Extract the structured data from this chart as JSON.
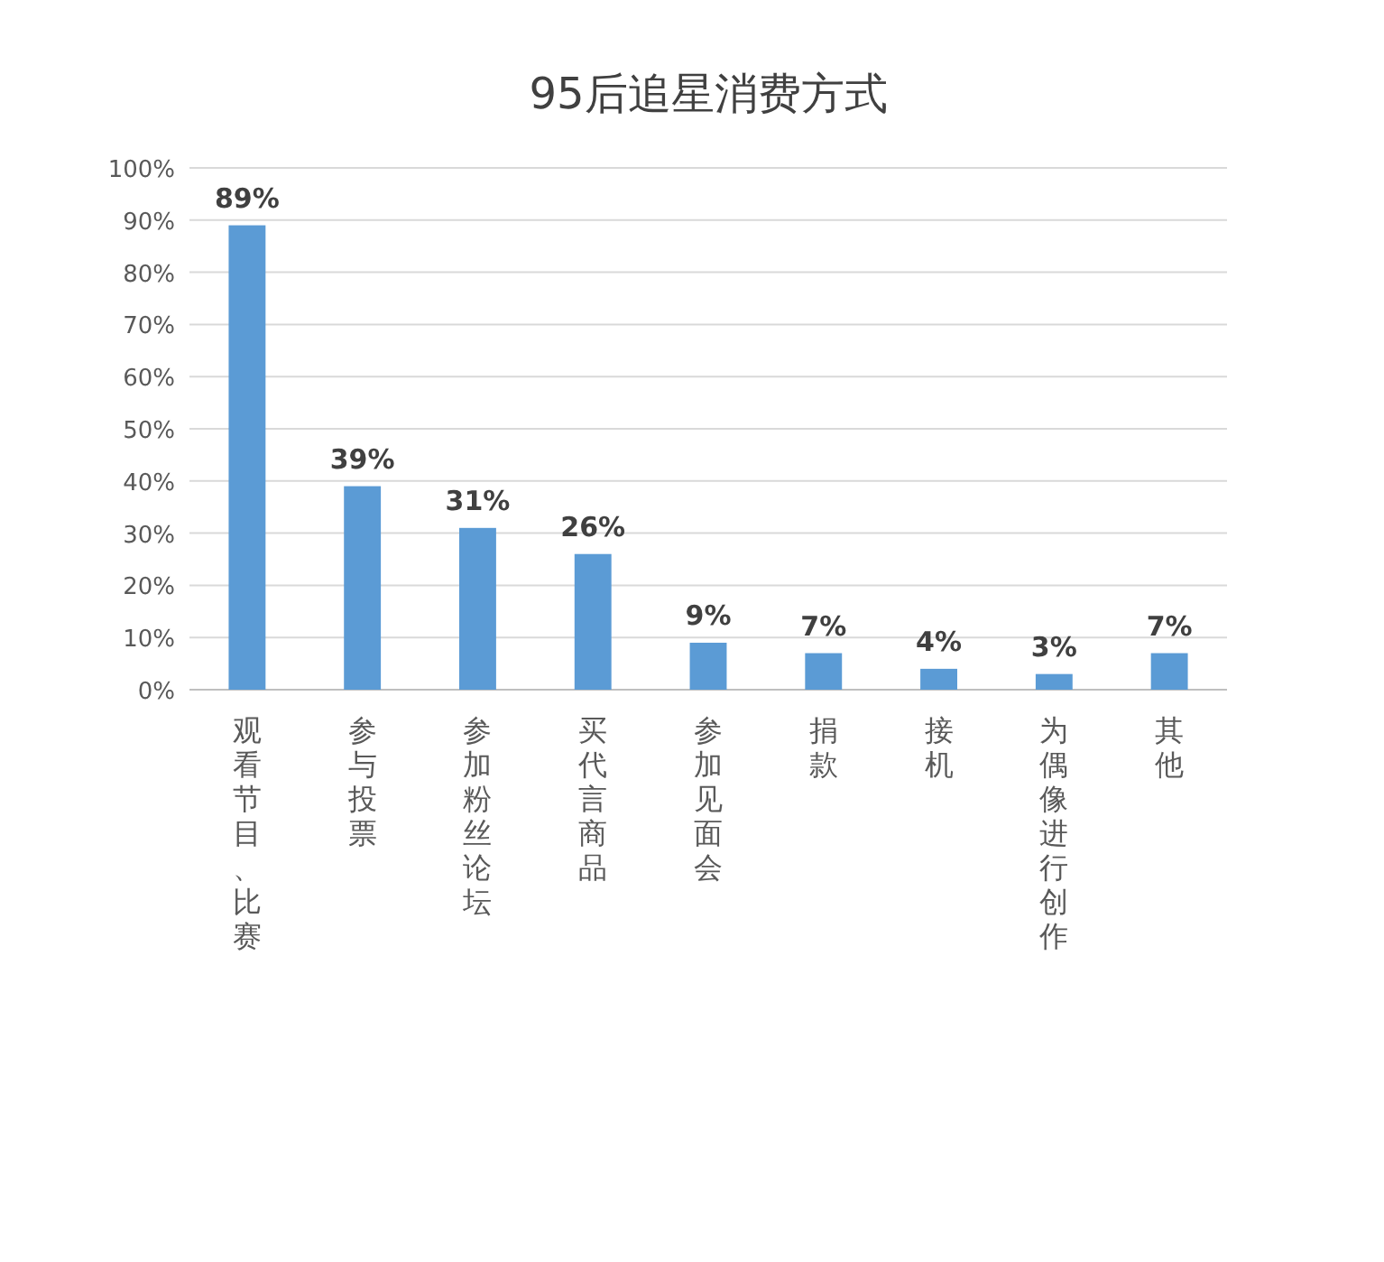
{
  "chart_data": {
    "type": "bar",
    "title": "95后追星消费方式",
    "categories": [
      "观看节目、比赛",
      "参与投票",
      "参加粉丝论坛",
      "买代言商品",
      "参加见面会",
      "捐款",
      "接机",
      "为偶像进行创作",
      "其他"
    ],
    "values": [
      89,
      39,
      31,
      26,
      9,
      7,
      4,
      3,
      7
    ],
    "value_labels": [
      "89%",
      "39%",
      "31%",
      "26%",
      "9%",
      "7%",
      "4%",
      "3%",
      "7%"
    ],
    "color": "#5b9bd5",
    "ylim": [
      0,
      100
    ],
    "yticks": [
      {
        "value": 0,
        "label": "0%"
      },
      {
        "value": 10,
        "label": "10%"
      },
      {
        "value": 20,
        "label": "20%"
      },
      {
        "value": 30,
        "label": "30%"
      },
      {
        "value": 40,
        "label": "40%"
      },
      {
        "value": 50,
        "label": "50%"
      },
      {
        "value": 60,
        "label": "60%"
      },
      {
        "value": 70,
        "label": "70%"
      },
      {
        "value": 80,
        "label": "80%"
      },
      {
        "value": 90,
        "label": "90%"
      },
      {
        "value": 100,
        "label": "100%"
      }
    ],
    "grid": "y"
  }
}
